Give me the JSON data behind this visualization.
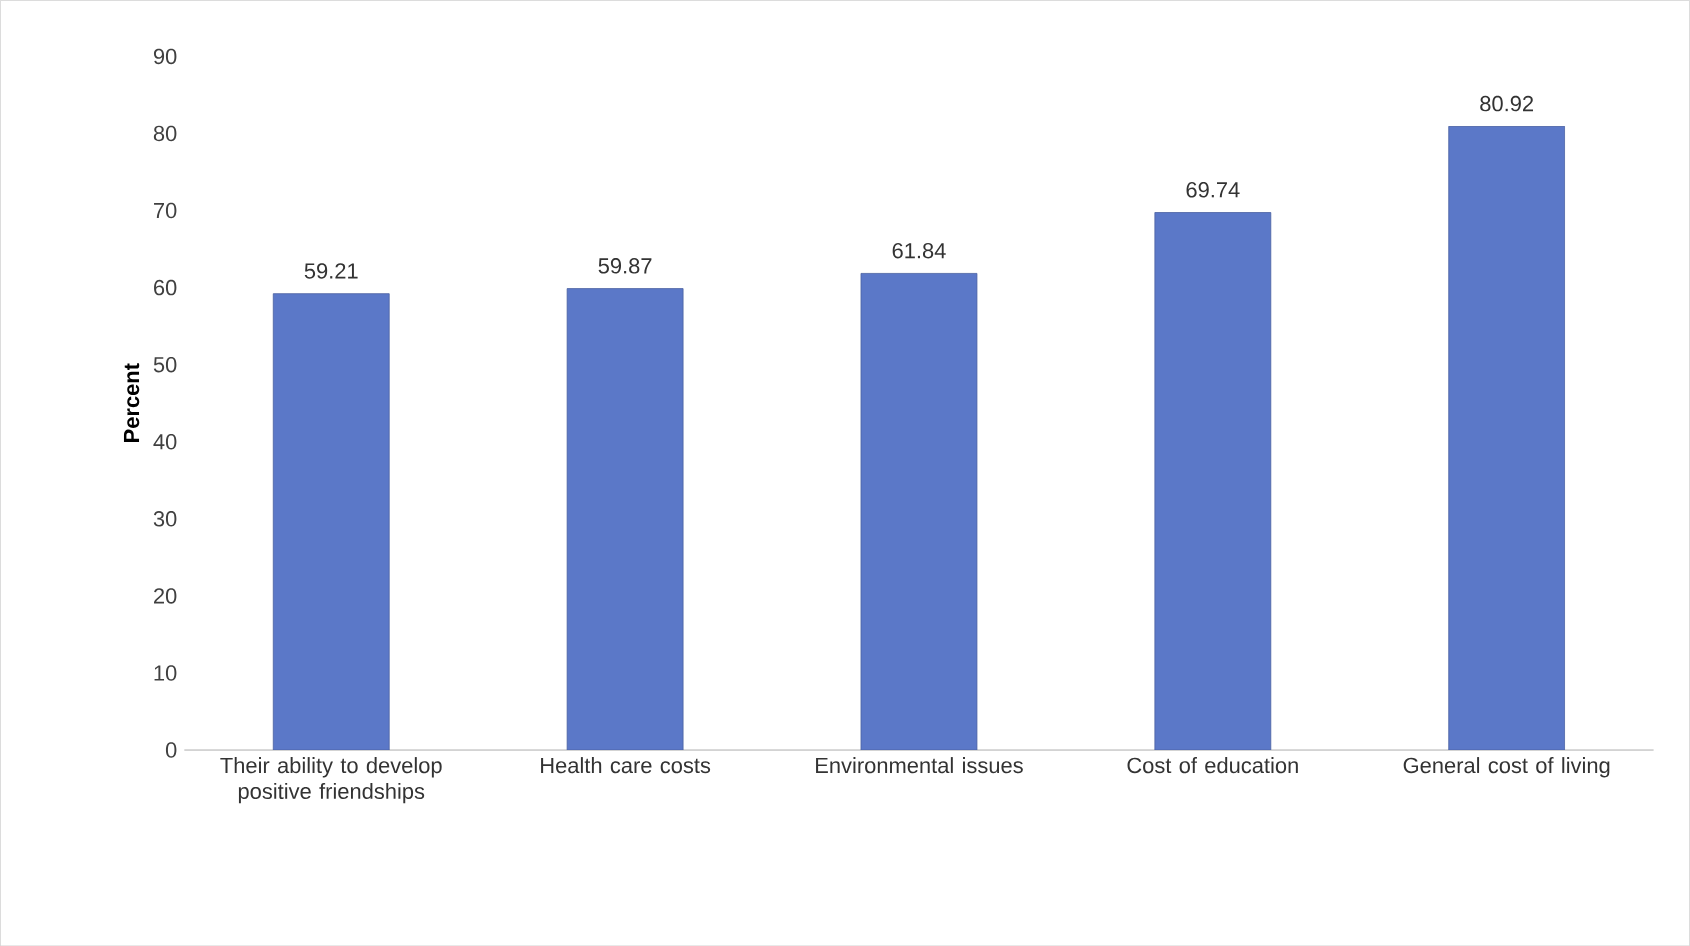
{
  "chart_data": {
    "type": "bar",
    "ylabel": "Percent",
    "categories": [
      "Their ability to develop positive friendships",
      "Health care costs",
      "Environmental issues",
      "Cost of education",
      "General cost of living"
    ],
    "values": [
      59.21,
      59.87,
      61.84,
      69.74,
      80.92
    ],
    "color": "#5b78c8",
    "ylim": [
      0,
      90
    ],
    "yticks": [
      0,
      10,
      20,
      30,
      40,
      50,
      60,
      70,
      80,
      90
    ],
    "data_labels": true
  }
}
